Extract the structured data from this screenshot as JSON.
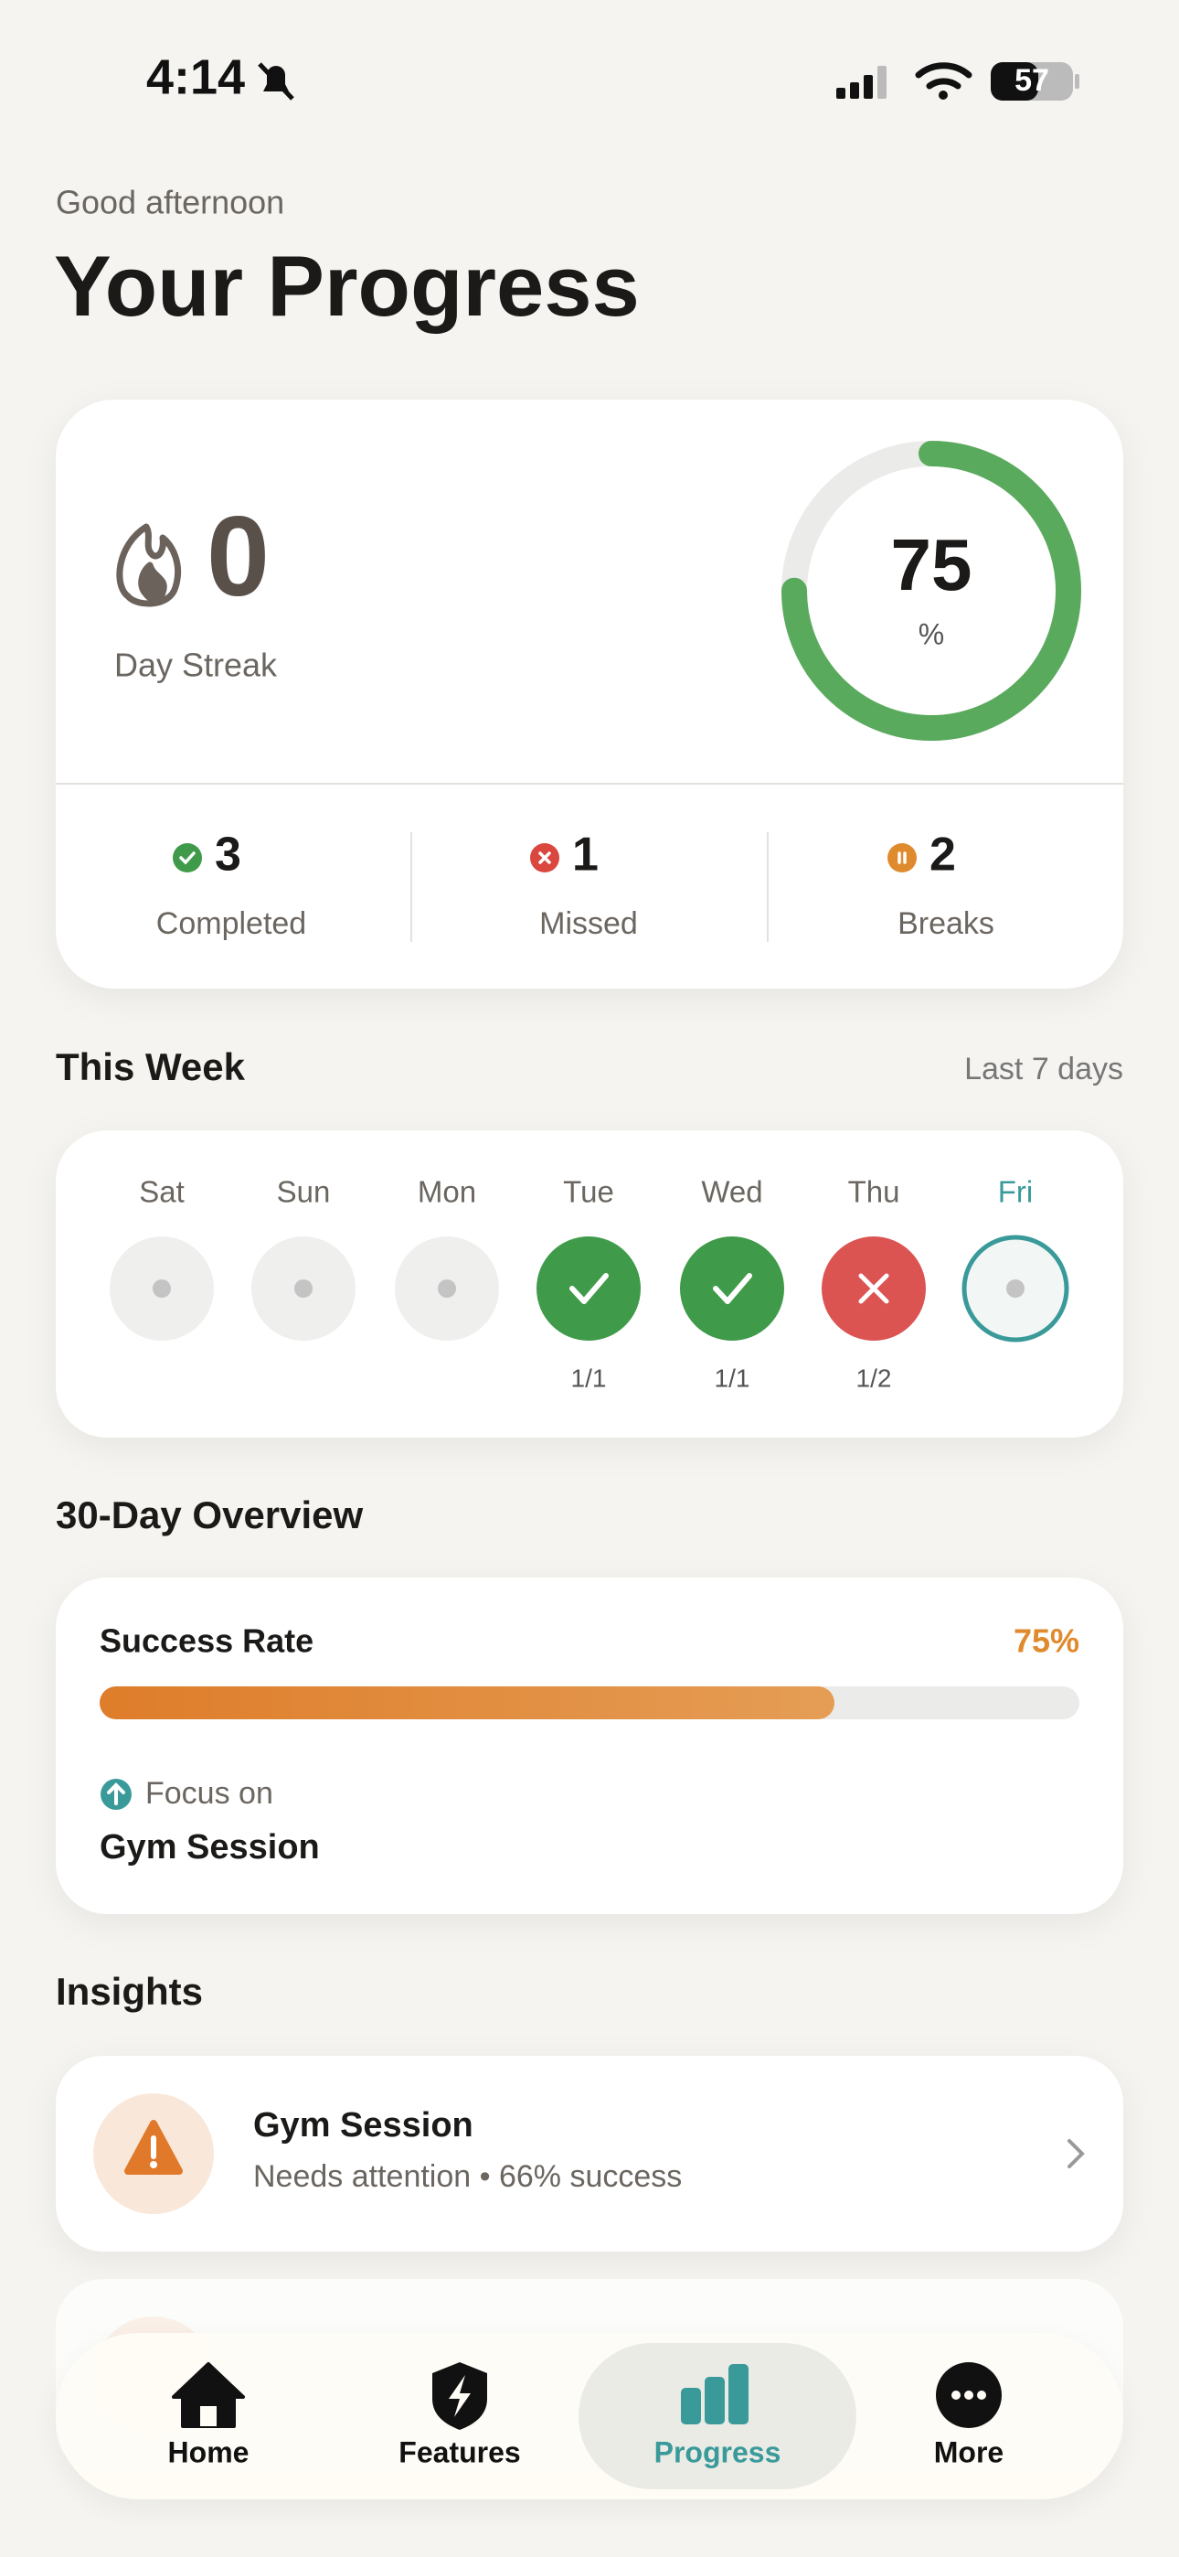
{
  "status_bar": {
    "time": "4:14",
    "battery": "57"
  },
  "header": {
    "greeting": "Good afternoon",
    "title": "Your Progress"
  },
  "streak_card": {
    "streak_value": "0",
    "streak_label": "Day Streak",
    "ring_value": 75,
    "ring_max": 100,
    "ring_unit": "%",
    "stats": [
      {
        "value": "3",
        "label": "Completed",
        "color": "#3f9a4a"
      },
      {
        "value": "1",
        "label": "Missed",
        "color": "#d9473f"
      },
      {
        "value": "2",
        "label": "Breaks",
        "color": "#e08a2e"
      }
    ]
  },
  "week": {
    "title": "This Week",
    "range": "Last 7 days",
    "days": [
      {
        "name": "Sat",
        "status": "none"
      },
      {
        "name": "Sun",
        "status": "none"
      },
      {
        "name": "Mon",
        "status": "none"
      },
      {
        "name": "Tue",
        "status": "done",
        "count": "1/1"
      },
      {
        "name": "Wed",
        "status": "done",
        "count": "1/1"
      },
      {
        "name": "Thu",
        "status": "missed",
        "count": "1/2"
      },
      {
        "name": "Fri",
        "status": "today"
      }
    ]
  },
  "overview": {
    "title": "30-Day Overview",
    "success_label": "Success Rate",
    "success_rate": 75,
    "success_rate_label": "75%",
    "success_max": 100,
    "focus_label": "Focus on",
    "focus_item": "Gym Session"
  },
  "insights": {
    "title": "Insights",
    "items": [
      {
        "title": "Gym Session",
        "subtitle": "Needs attention • 66% success"
      }
    ]
  },
  "nav": {
    "items": [
      {
        "label": "Home"
      },
      {
        "label": "Features"
      },
      {
        "label": "Progress",
        "active": true
      },
      {
        "label": "More"
      }
    ]
  }
}
